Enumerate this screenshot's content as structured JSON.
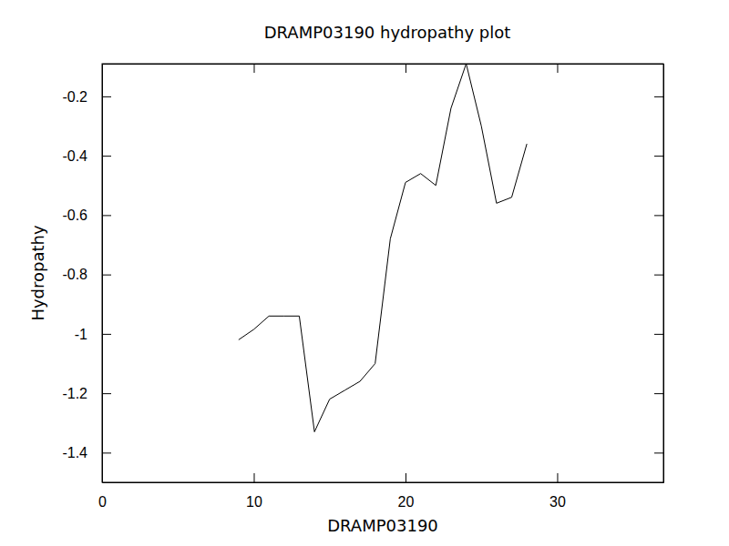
{
  "chart_data": {
    "type": "line",
    "title": "DRAMP03190 hydropathy plot",
    "x_label": "DRAMP03190",
    "y_label": "Hydropathy",
    "x": [
      9,
      10,
      11,
      12,
      13,
      14,
      15,
      16,
      17,
      18,
      19,
      20,
      21,
      22,
      23,
      24,
      25,
      26,
      27,
      28
    ],
    "values": [
      -1.02,
      -0.985,
      -0.94,
      -0.94,
      -0.94,
      -1.33,
      -1.22,
      -1.19,
      -1.16,
      -1.1,
      -0.68,
      -0.49,
      -0.46,
      -0.5,
      -0.24,
      -0.09,
      -0.3,
      -0.56,
      -0.54,
      -0.36
    ],
    "color": "#000000",
    "xlim": [
      0,
      37
    ],
    "xticks": [
      0,
      10,
      20,
      30
    ],
    "ylim": [
      -1.5,
      -0.09
    ],
    "yticks": [
      -1.4,
      -1.2,
      -1,
      -0.8,
      -0.6,
      -0.4,
      -0.2
    ],
    "grid": false
  }
}
